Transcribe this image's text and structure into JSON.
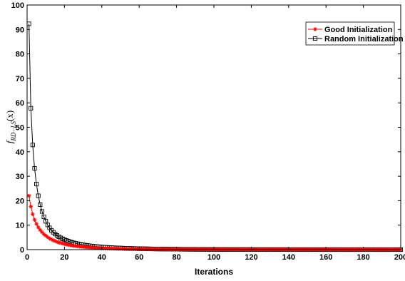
{
  "chart_data": {
    "type": "line",
    "xlabel": "Iterations",
    "ylabel": "f_{RD-LS}(x)",
    "ylabel_main": "f",
    "ylabel_sub": "RD−LS",
    "ylabel_arg": "(x)",
    "xlim": [
      0,
      200
    ],
    "ylim": [
      0,
      100
    ],
    "xticks": [
      0,
      20,
      40,
      60,
      80,
      100,
      120,
      140,
      160,
      180,
      200
    ],
    "yticks": [
      0,
      10,
      20,
      30,
      40,
      50,
      60,
      70,
      80,
      90,
      100
    ],
    "grid": false,
    "legend_position": "top-right",
    "series": [
      {
        "name": "Good Initialization",
        "color": "#ff0000",
        "marker": "asterisk",
        "x_start": 1,
        "x_end": 200,
        "values": [
          22.0,
          17.6,
          14.5,
          12.2,
          10.5,
          9.1,
          8.0,
          7.1,
          6.3,
          5.7,
          5.1,
          4.6,
          4.2,
          3.8,
          3.5,
          3.2,
          2.9,
          2.7,
          2.5,
          2.3,
          2.1,
          1.95,
          1.8,
          1.67,
          1.55,
          1.44,
          1.34,
          1.25,
          1.17,
          1.09,
          1.02,
          0.95,
          0.89,
          0.84,
          0.79,
          0.74,
          0.7,
          0.66,
          0.62,
          0.58,
          0.55,
          0.52,
          0.49,
          0.46,
          0.44,
          0.42,
          0.4,
          0.38,
          0.36,
          0.34,
          0.32,
          0.31,
          0.29,
          0.28,
          0.27,
          0.26,
          0.25,
          0.24,
          0.23,
          0.22
        ]
      },
      {
        "name": "Random Initialization",
        "color": "#000000",
        "marker": "square",
        "x_start": 1,
        "x_end": 200,
        "values": [
          92.3,
          57.8,
          42.8,
          33.2,
          26.8,
          22.0,
          18.4,
          15.6,
          13.4,
          11.6,
          10.1,
          8.9,
          7.9,
          7.1,
          6.4,
          5.8,
          5.25,
          4.8,
          4.4,
          4.05,
          3.75,
          3.45,
          3.2,
          2.97,
          2.76,
          2.57,
          2.4,
          2.24,
          2.1,
          1.96,
          1.84,
          1.72,
          1.62,
          1.52,
          1.43,
          1.35,
          1.27,
          1.2,
          1.13,
          1.07,
          1.01,
          0.96,
          0.91,
          0.86,
          0.82,
          0.78,
          0.74,
          0.7,
          0.67,
          0.64,
          0.61,
          0.58,
          0.55,
          0.53,
          0.5,
          0.48,
          0.46,
          0.44,
          0.42,
          0.4
        ]
      }
    ]
  }
}
